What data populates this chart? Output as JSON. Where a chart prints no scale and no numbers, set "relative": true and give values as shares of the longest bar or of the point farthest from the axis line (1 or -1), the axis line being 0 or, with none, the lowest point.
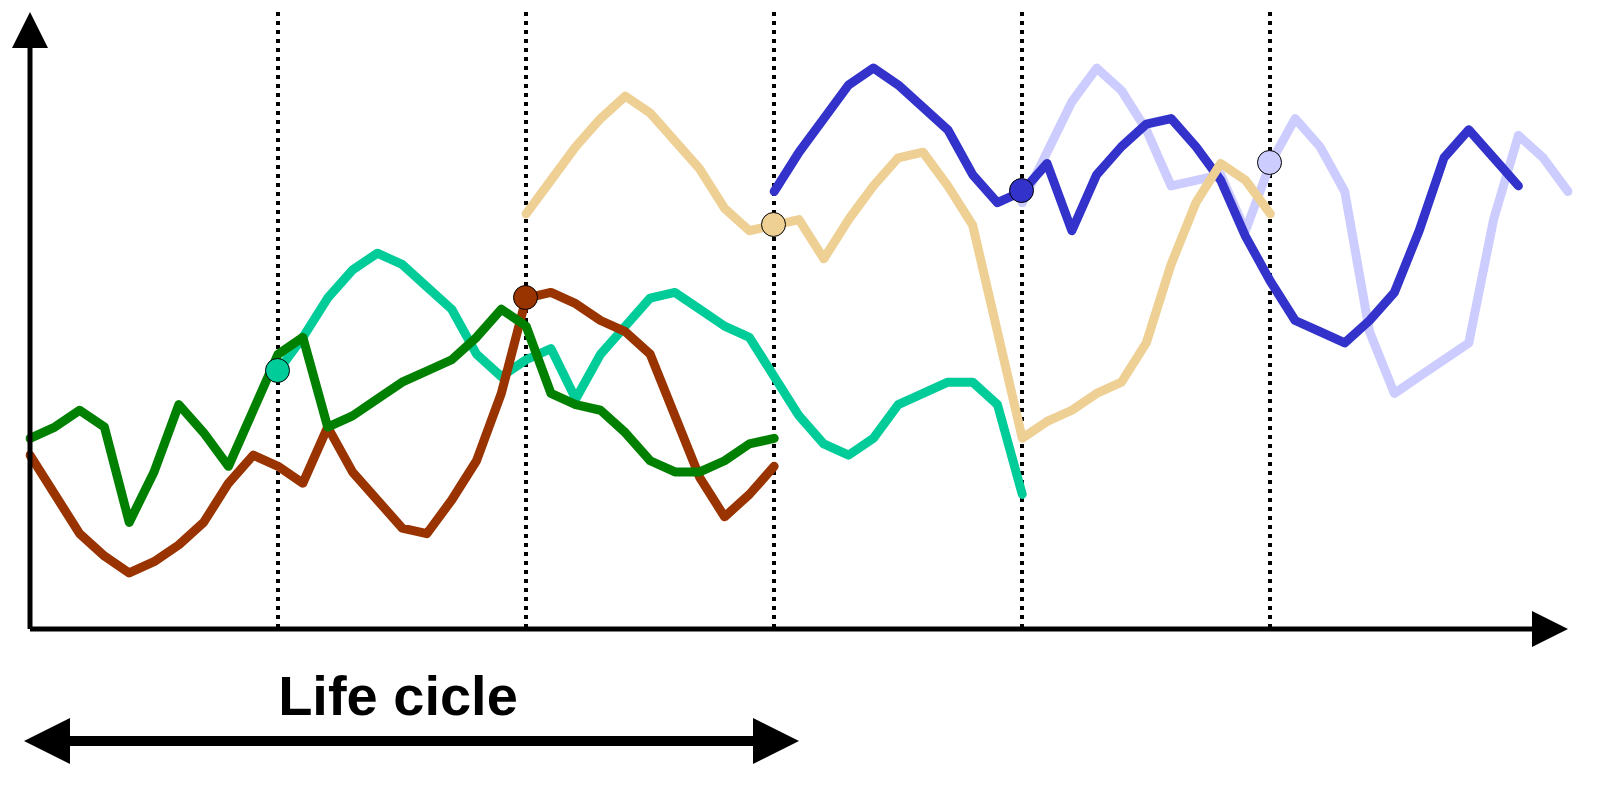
{
  "chart_data": {
    "type": "line",
    "relative": true,
    "grid": "x",
    "legend": false,
    "line_style": "solid",
    "marker": "none",
    "categories": [
      null,
      null,
      null,
      null,
      null,
      null,
      null,
      null,
      null,
      null,
      null,
      null,
      null,
      null,
      null,
      null,
      null,
      null,
      null,
      null,
      null,
      null,
      null,
      null,
      null,
      null,
      null,
      null,
      null,
      null,
      null,
      null,
      null,
      null,
      null,
      null,
      null,
      null,
      null,
      null,
      null,
      null,
      null,
      null,
      null,
      null,
      null,
      null,
      null,
      null,
      null,
      null,
      null,
      null,
      null,
      null,
      null,
      null,
      null,
      null,
      null,
      null,
      null
    ],
    "annotations": [
      "Life cicle"
    ],
    "series": [
      {
        "color": "#008000",
        "values": [
          0.34,
          0.36,
          0.39,
          0.36,
          0.19,
          0.28,
          0.4,
          0.35,
          0.29,
          0.39,
          0.49,
          0.52,
          0.36,
          0.38,
          0.41,
          0.44,
          0.46,
          0.48,
          0.52,
          0.57,
          0.54,
          0.42,
          0.4,
          0.39,
          0.35,
          0.3,
          0.28,
          0.28,
          0.3,
          0.33,
          0.34,
          null,
          null,
          null,
          null,
          null,
          null,
          null,
          null,
          null,
          null,
          null,
          null,
          null,
          null,
          null,
          null,
          null,
          null,
          null,
          null,
          null,
          null,
          null,
          null,
          null,
          null,
          null,
          null,
          null,
          null,
          null,
          null
        ]
      },
      {
        "color": "#993300",
        "values": [
          0.31,
          0.24,
          0.17,
          0.13,
          0.1,
          0.12,
          0.15,
          0.19,
          0.26,
          0.31,
          0.29,
          0.26,
          0.36,
          0.28,
          0.23,
          0.18,
          0.17,
          0.23,
          0.3,
          0.42,
          0.59,
          0.6,
          0.58,
          0.55,
          0.53,
          0.49,
          0.38,
          0.27,
          0.2,
          0.24,
          0.29,
          null,
          null,
          null,
          null,
          null,
          null,
          null,
          null,
          null,
          null,
          null,
          null,
          null,
          null,
          null,
          null,
          null,
          null,
          null,
          null,
          null,
          null,
          null,
          null,
          null,
          null,
          null,
          null,
          null,
          null,
          null,
          null
        ]
      },
      {
        "color": "#00cc99",
        "values": [
          null,
          null,
          null,
          null,
          null,
          null,
          null,
          null,
          null,
          null,
          0.46,
          0.52,
          0.59,
          0.64,
          0.67,
          0.65,
          0.61,
          0.57,
          0.49,
          0.45,
          0.48,
          0.5,
          0.41,
          0.49,
          0.54,
          0.59,
          0.6,
          0.57,
          0.54,
          0.52,
          0.45,
          0.38,
          0.33,
          0.31,
          0.34,
          0.4,
          0.42,
          0.44,
          0.44,
          0.4,
          0.24,
          null,
          null,
          null,
          null,
          null,
          null,
          null,
          null,
          null,
          null,
          null,
          null,
          null,
          null,
          null,
          null,
          null,
          null,
          null,
          null,
          null,
          null
        ]
      },
      {
        "color": "#eecf94",
        "values": [
          null,
          null,
          null,
          null,
          null,
          null,
          null,
          null,
          null,
          null,
          null,
          null,
          null,
          null,
          null,
          null,
          null,
          null,
          null,
          null,
          0.74,
          0.8,
          0.86,
          0.91,
          0.95,
          0.92,
          0.87,
          0.82,
          0.75,
          0.71,
          0.72,
          0.73,
          0.66,
          0.73,
          0.79,
          0.84,
          0.85,
          0.79,
          0.72,
          0.53,
          0.34,
          0.37,
          0.39,
          0.42,
          0.44,
          0.51,
          0.65,
          0.76,
          0.83,
          0.8,
          0.74,
          null,
          null,
          null,
          null,
          null,
          null,
          null,
          null,
          null,
          null,
          null,
          null
        ]
      },
      {
        "color": "#3333cc",
        "values": [
          null,
          null,
          null,
          null,
          null,
          null,
          null,
          null,
          null,
          null,
          null,
          null,
          null,
          null,
          null,
          null,
          null,
          null,
          null,
          null,
          null,
          null,
          null,
          null,
          null,
          null,
          null,
          null,
          null,
          null,
          0.78,
          0.85,
          0.91,
          0.97,
          1,
          0.97,
          0.93,
          0.89,
          0.81,
          0.76,
          0.78,
          0.83,
          0.71,
          0.81,
          0.86,
          0.9,
          0.91,
          0.86,
          0.8,
          0.7,
          0.62,
          0.55,
          0.53,
          0.51,
          0.55,
          0.6,
          0.71,
          0.84,
          0.89,
          0.84,
          0.79,
          null,
          null
        ]
      },
      {
        "color": "#ccccff",
        "values": [
          null,
          null,
          null,
          null,
          null,
          null,
          null,
          null,
          null,
          null,
          null,
          null,
          null,
          null,
          null,
          null,
          null,
          null,
          null,
          null,
          null,
          null,
          null,
          null,
          null,
          null,
          null,
          null,
          null,
          null,
          null,
          null,
          null,
          null,
          null,
          null,
          null,
          null,
          null,
          null,
          0.76,
          0.85,
          0.94,
          1,
          0.96,
          0.89,
          0.79,
          0.8,
          0.81,
          0.71,
          0.83,
          0.91,
          0.86,
          0.78,
          0.53,
          0.42,
          0.45,
          0.48,
          0.51,
          0.73,
          0.88,
          0.84,
          0.78
        ]
      }
    ]
  }
}
